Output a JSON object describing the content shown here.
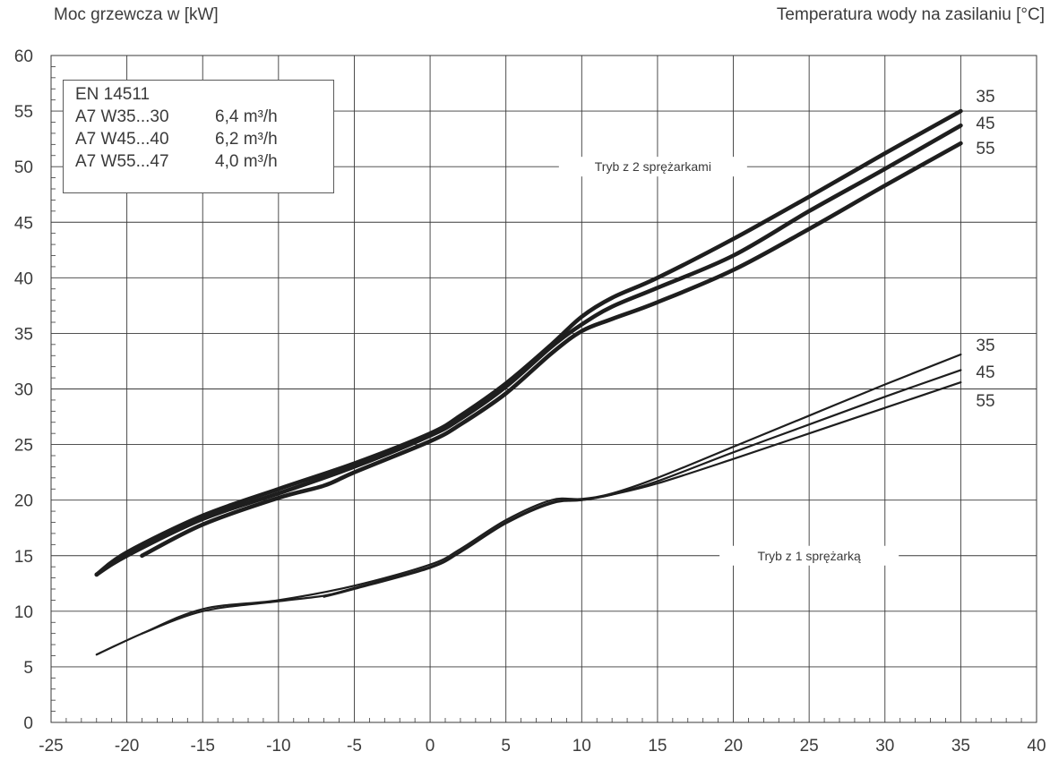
{
  "chart_data": {
    "type": "line",
    "ylabel": "Moc grzewcza w [kW]",
    "legend_title": "Temperatura wody na zasilaniu [°C]",
    "xlim": [
      -25,
      40
    ],
    "ylim": [
      0,
      60
    ],
    "x_ticks": [
      "-25",
      "-20",
      "-15",
      "-10",
      "-5",
      "0",
      "5",
      "10",
      "15",
      "20",
      "25",
      "30",
      "35",
      "40"
    ],
    "y_ticks": [
      "0",
      "5",
      "10",
      "15",
      "20",
      "25",
      "30",
      "35",
      "40",
      "45",
      "50",
      "55",
      "60"
    ],
    "grid": true,
    "info_box": {
      "title": "EN 14511",
      "rows": [
        {
          "label": "A7 W35...30",
          "value": "6,4 m³/h"
        },
        {
          "label": "A7 W45...40",
          "value": "6,2 m³/h"
        },
        {
          "label": "A7 W55...47",
          "value": "4,0 m³/h"
        }
      ]
    },
    "groups": [
      {
        "name": "Tryb z 2 sprężarkami",
        "series": [
          {
            "name": "35",
            "x": [
              -22,
              -20,
              -15,
              -10,
              -5,
              0,
              2,
              5,
              8,
              10,
              12,
              15,
              20,
              25,
              30,
              35
            ],
            "y": [
              13.3,
              15.3,
              18.6,
              21.0,
              23.3,
              26.0,
              27.6,
              30.5,
              34.0,
              36.5,
              38.2,
              40.0,
              43.5,
              47.3,
              51.2,
              55.0
            ]
          },
          {
            "name": "45",
            "x": [
              -22,
              -20,
              -15,
              -10,
              -5,
              0,
              2,
              5,
              8,
              10,
              12,
              15,
              20,
              25,
              30,
              35
            ],
            "y": [
              13.3,
              15.0,
              18.3,
              20.6,
              23.0,
              25.8,
              27.3,
              30.2,
              33.8,
              35.8,
              37.4,
              39.1,
              42.0,
              46.0,
              49.8,
              53.7
            ]
          },
          {
            "name": "55",
            "x": [
              -19,
              -15,
              -10,
              -7,
              -5,
              0,
              2,
              5,
              8,
              10,
              12,
              15,
              20,
              25,
              30,
              35
            ],
            "y": [
              15.0,
              17.8,
              20.2,
              21.3,
              22.5,
              25.3,
              26.8,
              29.6,
              33.2,
              35.2,
              36.3,
              37.8,
              40.7,
              44.4,
              48.3,
              52.1
            ]
          }
        ]
      },
      {
        "name": "Tryb z 1 sprężarką",
        "series": [
          {
            "name": "35",
            "x": [
              -22,
              -19,
              -15,
              -10,
              -5,
              0,
              2,
              5,
              8,
              10,
              12,
              15,
              20,
              25,
              30,
              35
            ],
            "y": [
              6.1,
              8.0,
              10.2,
              11.0,
              12.3,
              14.2,
              15.6,
              18.2,
              20.0,
              20.1,
              20.6,
              22.0,
              24.8,
              27.6,
              30.4,
              33.1
            ]
          },
          {
            "name": "45",
            "x": [
              -19,
              -15,
              -10,
              -7,
              -5,
              0,
              2,
              5,
              8,
              10,
              12,
              15,
              20,
              25,
              30,
              35
            ],
            "y": [
              8.0,
              10.0,
              10.9,
              11.4,
              12.1,
              14.0,
              15.4,
              18.0,
              19.8,
              20.0,
              20.5,
              21.7,
              24.3,
              26.8,
              29.3,
              31.7
            ]
          },
          {
            "name": "55",
            "x": [
              -7,
              -5,
              0,
              2,
              5,
              8,
              10,
              12,
              15,
              20,
              25,
              30,
              35
            ],
            "y": [
              11.3,
              12.0,
              13.9,
              15.3,
              17.9,
              19.7,
              20.0,
              20.5,
              21.5,
              23.7,
              26.0,
              28.3,
              30.6
            ]
          }
        ]
      }
    ]
  }
}
